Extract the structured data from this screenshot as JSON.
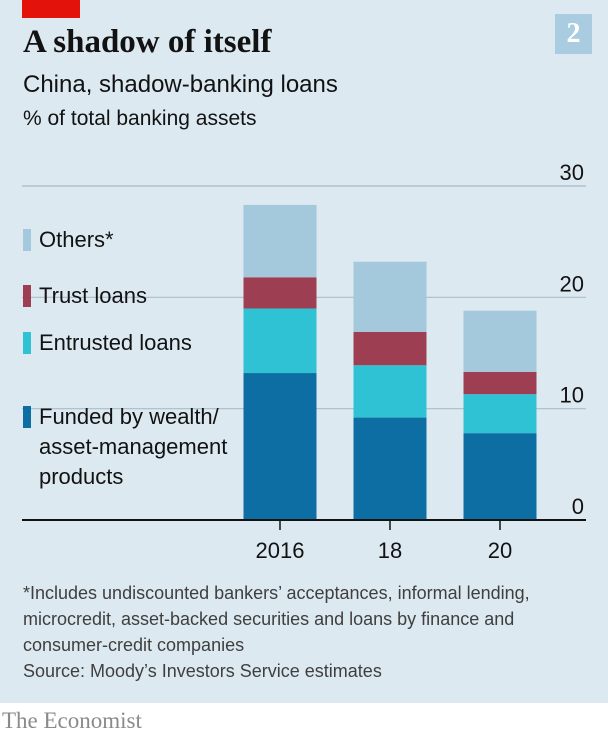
{
  "header": {
    "badge": "2",
    "title": "A shadow of itself",
    "subtitle": "China, shadow-banking loans",
    "unit": "% of total banking assets"
  },
  "legend": [
    {
      "label": "Others*",
      "color": "#a4c8dc"
    },
    {
      "label": "Trust loans",
      "color": "#9e3e52"
    },
    {
      "label": "Entrusted loans",
      "color": "#2fc2d4"
    },
    {
      "label": "Funded by wealth/ asset-management products",
      "color": "#0d6ea3"
    }
  ],
  "chart_data": {
    "type": "bar",
    "stacked": true,
    "categories": [
      "2016",
      "18",
      "20"
    ],
    "series": [
      {
        "name": "Funded by wealth/ asset-management products",
        "color": "#0d6ea3",
        "values": [
          13.2,
          9.2,
          7.8
        ]
      },
      {
        "name": "Entrusted loans",
        "color": "#2fc2d4",
        "values": [
          5.8,
          4.7,
          3.5
        ]
      },
      {
        "name": "Trust loans",
        "color": "#9e3e52",
        "values": [
          2.8,
          3.0,
          2.0
        ]
      },
      {
        "name": "Others*",
        "color": "#a4c8dc",
        "values": [
          6.5,
          6.3,
          5.5
        ]
      }
    ],
    "ylim": [
      0,
      30
    ],
    "yticks": [
      0,
      10,
      20,
      30
    ],
    "ytick_labels": [
      "0",
      "10",
      "20",
      "30"
    ],
    "grid": true,
    "legend_position": "left"
  },
  "footnote": "*Includes undiscounted bankers’ acceptances, informal lending, microcredit, asset-backed securities and loans by finance and consumer-credit companies",
  "source": "Source: Moody’s Investors Service estimates",
  "brand": "The Economist",
  "colors": {
    "background": "#dce9f1",
    "accent": "#e3120b",
    "badge": "#a9cce0"
  }
}
